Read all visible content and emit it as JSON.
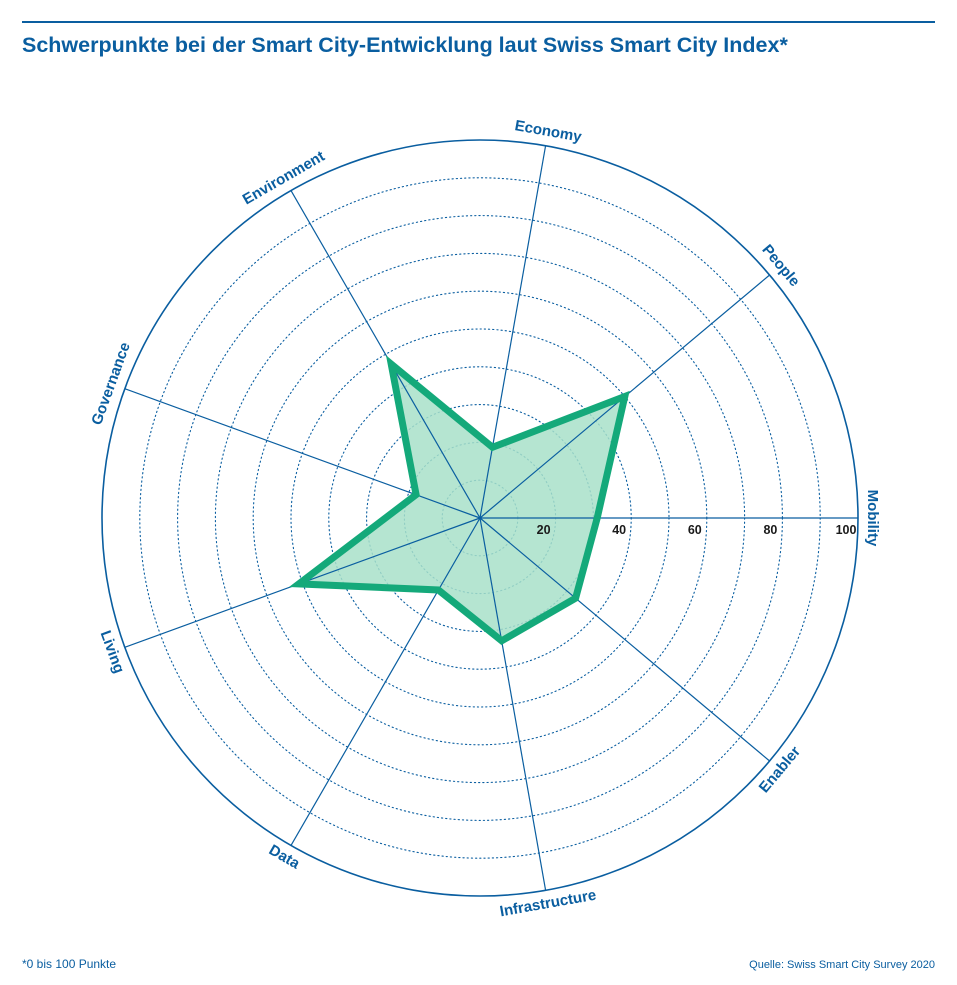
{
  "title": "Schwerpunkte bei der Smart City-Entwicklung laut Swiss Smart City Index*",
  "footnote": "*0 bis 100 Punkte",
  "source": "Quelle: Swiss Smart City Survey 2020",
  "colors": {
    "axis_blue": "#0a5ea0",
    "series_stroke": "#14a97a",
    "series_fill": "#a8e0c9"
  },
  "chart_data": {
    "type": "radar",
    "title": "Schwerpunkte bei der Smart City-Entwicklung laut Swiss Smart City Index*",
    "axes": [
      "Mobility",
      "People",
      "Economy",
      "Environment",
      "Governance",
      "Living",
      "Data",
      "Infrastructure",
      "Enabler"
    ],
    "rlim": [
      0,
      100
    ],
    "rings": [
      10,
      20,
      30,
      40,
      50,
      60,
      70,
      80,
      90,
      100
    ],
    "tick_labels": [
      "20",
      "40",
      "60",
      "80",
      "100"
    ],
    "grid": true,
    "series": [
      {
        "values": [
          31,
          50,
          19,
          47,
          18,
          51,
          22,
          33,
          33
        ]
      }
    ]
  }
}
